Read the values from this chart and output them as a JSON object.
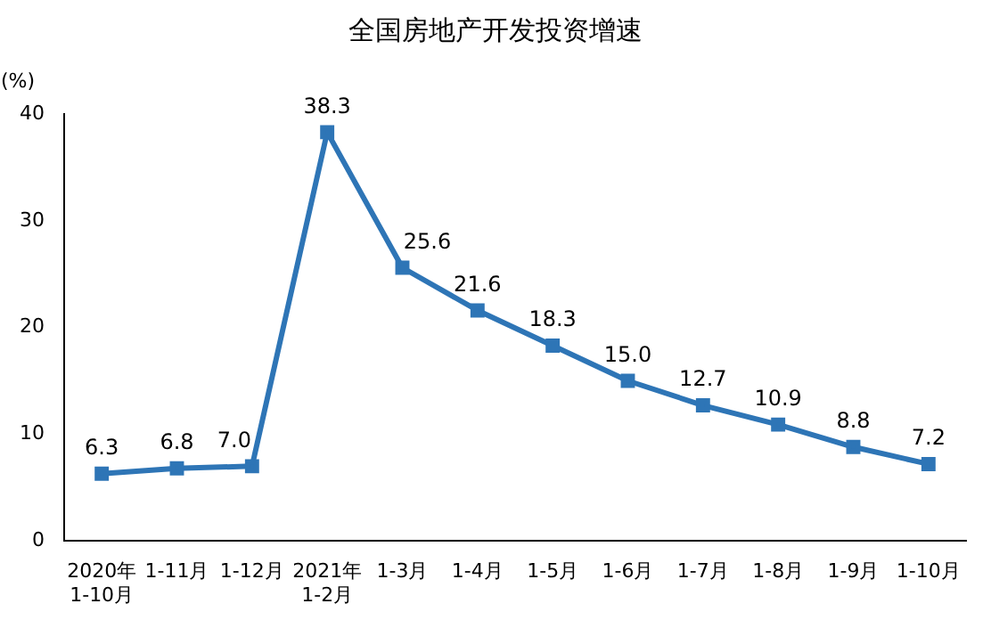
{
  "chart_data": {
    "type": "line",
    "title": "全国房地产开发投资增速",
    "ylabel": "(%)",
    "categories": [
      "2020年\n1-10月",
      "1-11月",
      "1-12月",
      "2021年\n1-2月",
      "1-3月",
      "1-4月",
      "1-5月",
      "1-6月",
      "1-7月",
      "1-8月",
      "1-9月",
      "1-10月"
    ],
    "series": [
      {
        "color": "#2e75b6",
        "values": [
          6.3,
          6.8,
          7.0,
          38.3,
          25.6,
          21.6,
          18.3,
          15.0,
          12.7,
          10.9,
          8.8,
          7.2
        ],
        "value_labels": [
          "6.3",
          "6.8",
          "7.0",
          "38.3",
          "25.6",
          "21.6",
          "18.3",
          "15.0",
          "12.7",
          "10.9",
          "8.8",
          "7.2"
        ]
      }
    ],
    "ylim": [
      0,
      40
    ],
    "yticks": [
      0,
      10,
      20,
      30,
      40
    ],
    "grid": false,
    "legend": false,
    "marker": "square",
    "line_style": "solid"
  }
}
